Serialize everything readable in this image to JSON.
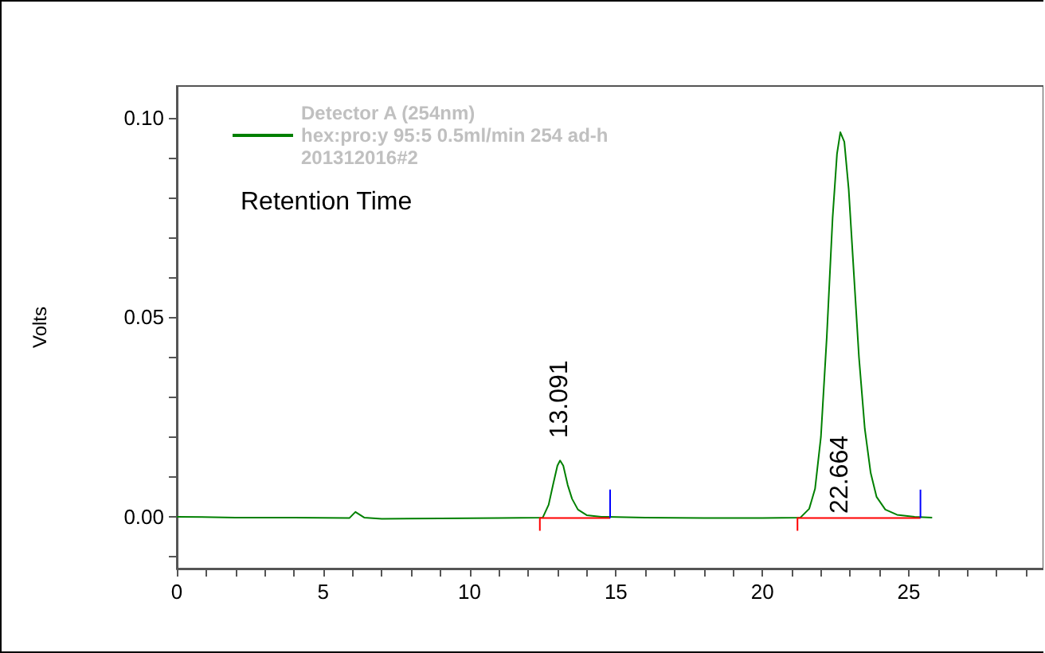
{
  "chart_data": {
    "type": "line",
    "ylabel": "Volts",
    "legend": "top left",
    "grid": false,
    "marker": "none",
    "line_style": "solid",
    "xlim": [
      0,
      29.6
    ],
    "ylim": [
      -0.013,
      0.108
    ],
    "xticks": [
      0,
      {
        "value": 1,
        "label": null
      },
      {
        "value": 2,
        "label": null
      },
      {
        "value": 3,
        "label": null
      },
      {
        "value": 4,
        "label": null
      },
      5,
      {
        "value": 6,
        "label": null
      },
      {
        "value": 7,
        "label": null
      },
      {
        "value": 8,
        "label": null
      },
      {
        "value": 9,
        "label": null
      },
      10,
      {
        "value": 11,
        "label": null
      },
      {
        "value": 12,
        "label": null
      },
      {
        "value": 13,
        "label": null
      },
      {
        "value": 14,
        "label": null
      },
      15,
      {
        "value": 16,
        "label": null
      },
      {
        "value": 17,
        "label": null
      },
      {
        "value": 18,
        "label": null
      },
      {
        "value": 19,
        "label": null
      },
      20,
      {
        "value": 21,
        "label": null
      },
      {
        "value": 22,
        "label": null
      },
      {
        "value": 23,
        "label": null
      },
      {
        "value": 24,
        "label": null
      },
      25,
      {
        "value": 26,
        "label": null
      },
      {
        "value": 27,
        "label": null
      },
      {
        "value": 28,
        "label": null
      },
      {
        "value": 29,
        "label": null
      }
    ],
    "yticks": [
      {
        "value": -0.01,
        "label": null
      },
      {
        "value": 0,
        "label": "0.00"
      },
      {
        "value": 0.01,
        "label": null
      },
      {
        "value": 0.02,
        "label": null
      },
      {
        "value": 0.03,
        "label": null
      },
      {
        "value": 0.04,
        "label": null
      },
      {
        "value": 0.05,
        "label": "0.05"
      },
      {
        "value": 0.06,
        "label": null
      },
      {
        "value": 0.07,
        "label": null
      },
      {
        "value": 0.08,
        "label": null
      },
      {
        "value": 0.09,
        "label": null
      },
      {
        "value": 0.1,
        "label": "0.10"
      }
    ],
    "annotations": [
      "Retention Time",
      {
        "text": "13.091",
        "x": 13.091,
        "y": 0.0141
      },
      {
        "text": "22.664",
        "x": 22.664,
        "y": 0
      }
    ],
    "series": [
      {
        "name": "Detector A (254nm)\nhex:pro:y 95:5 0.5ml/min 254 ad-h\n201312016#2",
        "color": "#008000",
        "x": [
          0,
          2,
          4,
          5.9,
          6.1,
          6.4,
          7,
          9,
          11,
          12.5,
          12.7,
          12.85,
          13.0,
          13.091,
          13.2,
          13.35,
          13.5,
          13.7,
          14.0,
          14.5,
          16,
          18,
          20,
          21.3,
          21.6,
          21.8,
          22.0,
          22.2,
          22.4,
          22.55,
          22.664,
          22.8,
          22.95,
          23.1,
          23.3,
          23.5,
          23.7,
          23.9,
          24.2,
          24.6,
          25.2,
          25.8
        ],
        "values": [
          0,
          -0.0002,
          -0.0002,
          -0.0003,
          0.0012,
          -0.0002,
          -0.0005,
          -0.0004,
          -0.0003,
          -0.0002,
          0.003,
          0.008,
          0.0128,
          0.0141,
          0.0128,
          0.008,
          0.0045,
          0.0018,
          0.0004,
          0,
          -0.0002,
          -0.0003,
          -0.0003,
          -0.0002,
          0.002,
          0.007,
          0.02,
          0.045,
          0.075,
          0.091,
          0.0964,
          0.094,
          0.082,
          0.064,
          0.04,
          0.022,
          0.011,
          0.005,
          0.0018,
          0.0005,
          0,
          -0.0002
        ]
      },
      {
        "color": "#ff0000",
        "x": [
          12.4,
          12.4,
          14.8
        ],
        "values": [
          -0.0035,
          -0.0003,
          -0.0003
        ]
      },
      {
        "color": "#ff0000",
        "x": [
          21.2,
          21.2,
          25.4
        ],
        "values": [
          -0.0035,
          -0.0003,
          -0.0003
        ]
      },
      {
        "color": "#0000ff",
        "x": [
          14.8,
          14.8
        ],
        "values": [
          -0.0003,
          0.0068
        ]
      },
      {
        "color": "#0000ff",
        "x": [
          25.4,
          25.4
        ],
        "values": [
          -0.0003,
          0.0068
        ]
      }
    ]
  }
}
